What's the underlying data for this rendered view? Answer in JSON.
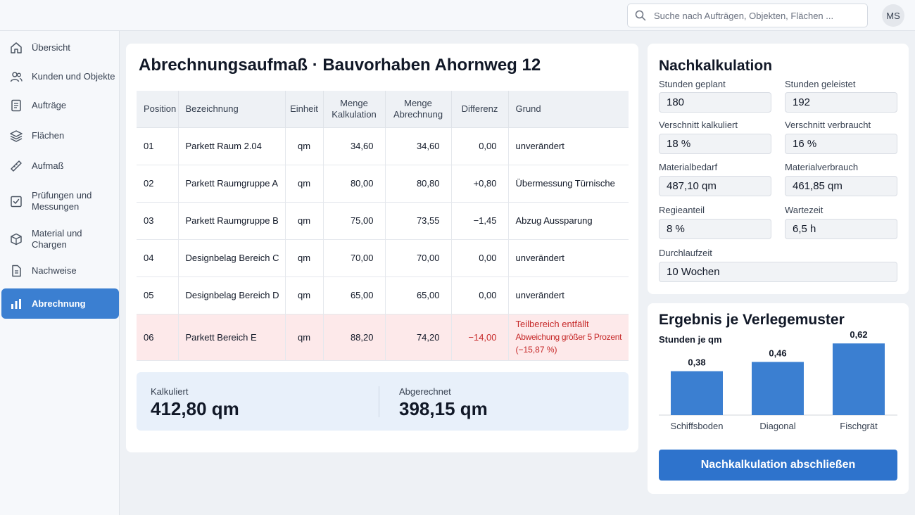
{
  "search": {
    "placeholder": "Suche nach Aufträgen, Objekten, Flächen ..."
  },
  "user": {
    "initials": "MS"
  },
  "sidebar": {
    "items": [
      {
        "label": "Übersicht",
        "icon": "home-icon"
      },
      {
        "label": "Kunden und Objekte",
        "icon": "users-icon"
      },
      {
        "label": "Aufträge",
        "icon": "document-icon"
      },
      {
        "label": "Flächen",
        "icon": "layers-icon"
      },
      {
        "label": "Aufmaß",
        "icon": "ruler-icon"
      },
      {
        "label": "Prüfungen und Messungen",
        "icon": "checklist-icon"
      },
      {
        "label": "Material und Chargen",
        "icon": "box-icon"
      },
      {
        "label": "Nachweise",
        "icon": "file-icon"
      },
      {
        "label": "Abrechnung",
        "icon": "bar-chart-icon",
        "active": true
      }
    ]
  },
  "main": {
    "title": "Abrechnungsaufmaß · Bauvorhaben Ahornweg 12",
    "columns": [
      "Position",
      "Bezeichnung",
      "Einheit",
      "Menge Kalkulation",
      "Menge Abrechnung",
      "Differenz",
      "Grund"
    ],
    "rows": [
      {
        "pos": "01",
        "name": "Parkett Raum 2.04",
        "unit": "qm",
        "calc": "34,60",
        "bill": "34,60",
        "diff": "0,00",
        "reason": "unverändert"
      },
      {
        "pos": "02",
        "name": "Parkett Raumgruppe A",
        "unit": "qm",
        "calc": "80,00",
        "bill": "80,80",
        "diff": "+0,80",
        "reason": "Übermessung Türnische"
      },
      {
        "pos": "03",
        "name": "Parkett Raumgruppe B",
        "unit": "qm",
        "calc": "75,00",
        "bill": "73,55",
        "diff": "−1,45",
        "reason": "Abzug Aussparung"
      },
      {
        "pos": "04",
        "name": "Designbelag Bereich C",
        "unit": "qm",
        "calc": "70,00",
        "bill": "70,00",
        "diff": "0,00",
        "reason": "unverändert"
      },
      {
        "pos": "05",
        "name": "Designbelag Bereich D",
        "unit": "qm",
        "calc": "65,00",
        "bill": "65,00",
        "diff": "0,00",
        "reason": "unverändert"
      }
    ],
    "warn_row": {
      "pos": "06",
      "name": "Parkett Bereich E",
      "unit": "qm",
      "calc": "88,20",
      "bill": "74,20",
      "diff": "−14,00",
      "reason_line1": "Teilbereich entfällt",
      "reason_line2": "Abweichung größer 5 Prozent",
      "reason_line3": "(−15,87 %)"
    },
    "summary": {
      "calc_label": "Kalkuliert",
      "calc_value": "412,80 qm",
      "bill_label": "Abgerechnet",
      "bill_value": "398,15 qm"
    }
  },
  "nachkalkulation": {
    "title": "Nachkalkulation",
    "fields": {
      "stunden_geplant": {
        "label": "Stunden geplant",
        "value": "180"
      },
      "stunden_geleistet": {
        "label": "Stunden geleistet",
        "value": "192"
      },
      "verschnitt_kalkuliert": {
        "label": "Verschnitt kalkuliert",
        "value": "18 %"
      },
      "verschnitt_verbraucht": {
        "label": "Verschnitt verbraucht",
        "value": "16 %"
      },
      "materialbedarf": {
        "label": "Materialbedarf",
        "value": "487,10 qm"
      },
      "materialverbrauch": {
        "label": "Materialverbrauch",
        "value": "461,85 qm"
      },
      "regieanteil": {
        "label": "Regieanteil",
        "value": "8 %"
      },
      "wartezeit": {
        "label": "Wartezeit",
        "value": "6,5 h"
      },
      "durchlaufzeit": {
        "label": "Durchlaufzeit",
        "value": "10 Wochen"
      }
    }
  },
  "ergebnis": {
    "title": "Ergebnis je Verlegemuster",
    "subtitle": "Stunden je qm",
    "button_label": "Nachkalkulation abschließen"
  },
  "chart_data": {
    "type": "bar",
    "title": "Ergebnis je Verlegemuster",
    "ylabel": "Stunden je qm",
    "categories": [
      "Schiffsboden",
      "Diagonal",
      "Fischgrät"
    ],
    "values": [
      0.38,
      0.46,
      0.62
    ],
    "value_labels": [
      "0,38",
      "0,46",
      "0,62"
    ],
    "ylim": [
      0,
      0.7
    ],
    "bar_color": "#3b7fd1",
    "grid": false
  },
  "colors": {
    "accent": "#3b7fd1",
    "button": "#2e73cc",
    "warning_text": "#c62828",
    "warning_bg": "#fde9ea"
  }
}
